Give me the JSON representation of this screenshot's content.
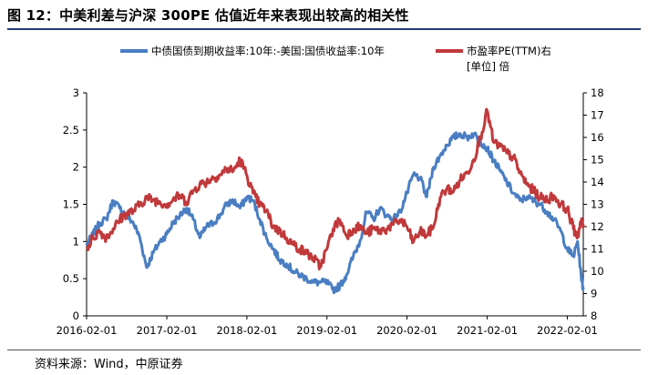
{
  "figure": {
    "title": "图 12：中美利差与沪深 300PE 估值近年来表现出较高的相关性",
    "source": "资料来源：Wind，中原证券"
  },
  "chart_data": {
    "type": "line",
    "x_range": [
      "2016-02-01",
      "2022-04-15"
    ],
    "x_tick_labels": [
      "2016-02-01",
      "2017-02-01",
      "2018-02-01",
      "2019-02-01",
      "2020-02-01",
      "2021-02-01",
      "2022-02-01"
    ],
    "y_left": {
      "range": [
        0,
        3
      ],
      "tick_labels": [
        "0",
        "0.5",
        "1",
        "1.5",
        "2",
        "2.5",
        "3"
      ]
    },
    "y_right": {
      "range": [
        8,
        18
      ],
      "tick_labels": [
        "8",
        "9",
        "10",
        "11",
        "12",
        "13",
        "14",
        "15",
        "16",
        "17",
        "18"
      ]
    },
    "grid": false,
    "legend_position": "top",
    "series": [
      {
        "name": "中债国债到期收益率:10年:-美国:国债收益率:10年",
        "axis": "left",
        "color": "#4a7ec2",
        "points": [
          [
            "2016-02-01",
            0.95
          ],
          [
            "2016-03-01",
            1.1
          ],
          [
            "2016-04-01",
            1.25
          ],
          [
            "2016-05-01",
            1.3
          ],
          [
            "2016-06-01",
            1.55
          ],
          [
            "2016-07-01",
            1.45
          ],
          [
            "2016-08-01",
            1.35
          ],
          [
            "2016-09-01",
            1.25
          ],
          [
            "2016-10-01",
            1.05
          ],
          [
            "2016-11-01",
            0.65
          ],
          [
            "2016-12-01",
            0.85
          ],
          [
            "2017-01-01",
            1.0
          ],
          [
            "2017-02-01",
            1.1
          ],
          [
            "2017-03-01",
            1.25
          ],
          [
            "2017-04-01",
            1.35
          ],
          [
            "2017-05-01",
            1.45
          ],
          [
            "2017-06-01",
            1.3
          ],
          [
            "2017-07-01",
            1.05
          ],
          [
            "2017-08-01",
            1.2
          ],
          [
            "2017-09-01",
            1.25
          ],
          [
            "2017-10-01",
            1.35
          ],
          [
            "2017-11-01",
            1.5
          ],
          [
            "2017-12-01",
            1.55
          ],
          [
            "2018-01-01",
            1.45
          ],
          [
            "2018-02-01",
            1.6
          ],
          [
            "2018-03-01",
            1.55
          ],
          [
            "2018-04-01",
            1.3
          ],
          [
            "2018-05-01",
            1.05
          ],
          [
            "2018-06-01",
            0.9
          ],
          [
            "2018-07-01",
            0.75
          ],
          [
            "2018-08-01",
            0.7
          ],
          [
            "2018-09-01",
            0.6
          ],
          [
            "2018-10-01",
            0.55
          ],
          [
            "2018-11-01",
            0.5
          ],
          [
            "2018-12-01",
            0.45
          ],
          [
            "2019-01-01",
            0.45
          ],
          [
            "2019-02-01",
            0.45
          ],
          [
            "2019-03-01",
            0.35
          ],
          [
            "2019-04-01",
            0.4
          ],
          [
            "2019-05-01",
            0.55
          ],
          [
            "2019-06-01",
            0.8
          ],
          [
            "2019-07-01",
            1.0
          ],
          [
            "2019-08-01",
            1.4
          ],
          [
            "2019-09-01",
            1.3
          ],
          [
            "2019-10-01",
            1.45
          ],
          [
            "2019-11-01",
            1.35
          ],
          [
            "2019-12-01",
            1.3
          ],
          [
            "2020-01-01",
            1.4
          ],
          [
            "2020-02-01",
            1.65
          ],
          [
            "2020-03-01",
            1.9
          ],
          [
            "2020-04-01",
            1.85
          ],
          [
            "2020-05-01",
            1.6
          ],
          [
            "2020-06-01",
            2.0
          ],
          [
            "2020-07-01",
            2.15
          ],
          [
            "2020-08-01",
            2.3
          ],
          [
            "2020-09-01",
            2.4
          ],
          [
            "2020-10-01",
            2.45
          ],
          [
            "2020-11-01",
            2.4
          ],
          [
            "2020-12-01",
            2.45
          ],
          [
            "2021-01-01",
            2.35
          ],
          [
            "2021-02-01",
            2.25
          ],
          [
            "2021-03-01",
            2.1
          ],
          [
            "2021-04-01",
            1.95
          ],
          [
            "2021-05-01",
            1.8
          ],
          [
            "2021-06-01",
            1.65
          ],
          [
            "2021-07-01",
            1.55
          ],
          [
            "2021-08-01",
            1.6
          ],
          [
            "2021-09-01",
            1.55
          ],
          [
            "2021-10-01",
            1.5
          ],
          [
            "2021-11-01",
            1.4
          ],
          [
            "2021-12-01",
            1.3
          ],
          [
            "2022-01-01",
            1.15
          ],
          [
            "2022-02-01",
            0.9
          ],
          [
            "2022-03-01",
            0.8
          ],
          [
            "2022-03-20",
            1.0
          ],
          [
            "2022-04-05",
            0.55
          ],
          [
            "2022-04-15",
            0.35
          ]
        ]
      },
      {
        "name": "市盈率PE(TTM)右",
        "axis": "right",
        "unit": "[单位] 倍",
        "color": "#c0393b",
        "points": [
          [
            "2016-02-01",
            11.0
          ],
          [
            "2016-03-01",
            11.5
          ],
          [
            "2016-04-01",
            11.8
          ],
          [
            "2016-05-01",
            11.5
          ],
          [
            "2016-06-01",
            11.9
          ],
          [
            "2016-07-01",
            12.3
          ],
          [
            "2016-08-01",
            12.6
          ],
          [
            "2016-09-01",
            12.7
          ],
          [
            "2016-10-01",
            13.0
          ],
          [
            "2016-11-01",
            13.3
          ],
          [
            "2016-12-01",
            13.2
          ],
          [
            "2017-01-01",
            13.1
          ],
          [
            "2017-02-01",
            13.0
          ],
          [
            "2017-03-01",
            13.2
          ],
          [
            "2017-04-01",
            13.4
          ],
          [
            "2017-05-01",
            13.1
          ],
          [
            "2017-06-01",
            13.6
          ],
          [
            "2017-07-01",
            13.9
          ],
          [
            "2017-08-01",
            14.0
          ],
          [
            "2017-09-01",
            14.2
          ],
          [
            "2017-10-01",
            14.3
          ],
          [
            "2017-11-01",
            14.6
          ],
          [
            "2017-12-01",
            14.5
          ],
          [
            "2018-01-01",
            15.0
          ],
          [
            "2018-02-01",
            14.3
          ],
          [
            "2018-03-01",
            13.5
          ],
          [
            "2018-04-01",
            13.0
          ],
          [
            "2018-05-01",
            12.7
          ],
          [
            "2018-06-01",
            12.0
          ],
          [
            "2018-07-01",
            11.8
          ],
          [
            "2018-08-01",
            11.5
          ],
          [
            "2018-09-01",
            11.2
          ],
          [
            "2018-10-01",
            11.0
          ],
          [
            "2018-11-01",
            10.8
          ],
          [
            "2018-12-01",
            10.6
          ],
          [
            "2019-01-01",
            10.2
          ],
          [
            "2019-02-01",
            11.0
          ],
          [
            "2019-03-01",
            11.9
          ],
          [
            "2019-04-01",
            12.3
          ],
          [
            "2019-05-01",
            11.6
          ],
          [
            "2019-06-01",
            11.9
          ],
          [
            "2019-07-01",
            12.0
          ],
          [
            "2019-08-01",
            11.7
          ],
          [
            "2019-09-01",
            11.9
          ],
          [
            "2019-10-01",
            11.8
          ],
          [
            "2019-11-01",
            11.9
          ],
          [
            "2019-12-01",
            12.1
          ],
          [
            "2020-01-01",
            12.3
          ],
          [
            "2020-02-01",
            12.0
          ],
          [
            "2020-03-01",
            11.3
          ],
          [
            "2020-04-01",
            11.8
          ],
          [
            "2020-05-01",
            11.6
          ],
          [
            "2020-06-01",
            12.0
          ],
          [
            "2020-07-01",
            13.3
          ],
          [
            "2020-08-01",
            13.7
          ],
          [
            "2020-09-01",
            13.6
          ],
          [
            "2020-10-01",
            14.1
          ],
          [
            "2020-11-01",
            14.4
          ],
          [
            "2020-12-01",
            15.0
          ],
          [
            "2021-01-01",
            16.0
          ],
          [
            "2021-02-01",
            17.2
          ],
          [
            "2021-03-01",
            15.8
          ],
          [
            "2021-04-01",
            15.6
          ],
          [
            "2021-05-01",
            15.3
          ],
          [
            "2021-06-01",
            15.1
          ],
          [
            "2021-07-01",
            14.4
          ],
          [
            "2021-08-01",
            13.9
          ],
          [
            "2021-09-01",
            13.6
          ],
          [
            "2021-10-01",
            13.3
          ],
          [
            "2021-11-01",
            13.2
          ],
          [
            "2021-12-01",
            13.4
          ],
          [
            "2022-01-01",
            13.0
          ],
          [
            "2022-02-01",
            12.8
          ],
          [
            "2022-03-01",
            11.9
          ],
          [
            "2022-03-20",
            11.6
          ],
          [
            "2022-04-05",
            12.2
          ],
          [
            "2022-04-15",
            12.1
          ]
        ]
      }
    ]
  }
}
